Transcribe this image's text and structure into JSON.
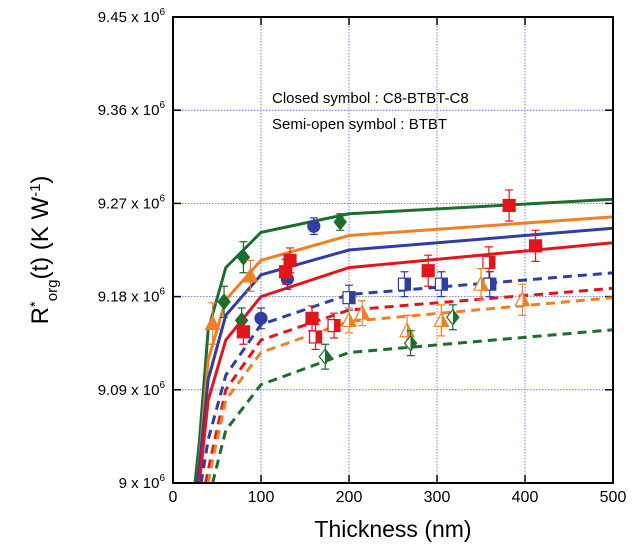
{
  "chart_data": {
    "type": "scatter",
    "x_label": "Thickness (nm)",
    "y_label": [
      {
        "text": "R"
      },
      {
        "text": "*",
        "shift": "super"
      },
      {
        "text": "org",
        "shift": "sub"
      },
      {
        "text": "(t) (K W"
      },
      {
        "text": "-1",
        "shift": "super"
      },
      {
        "text": ")"
      }
    ],
    "annotations": [
      "Closed symbol : C8-BTBT-C8",
      "Semi-open symbol : BTBT"
    ],
    "xlim": [
      0,
      500
    ],
    "xticks": [
      0,
      100,
      200,
      300,
      400,
      500
    ],
    "ylim": [
      9000000,
      9450000
    ],
    "yticks": [
      {
        "value": 9000000,
        "label": "9 x 10",
        "sup": "6"
      },
      {
        "value": 9090000,
        "label": "9.09 x 10",
        "sup": "6"
      },
      {
        "value": 9180000,
        "label": "9.18 x 10",
        "sup": "6"
      },
      {
        "value": 9270000,
        "label": "9.27 x 10",
        "sup": "6"
      },
      {
        "value": 9360000,
        "label": "9.36 x 10",
        "sup": "6"
      },
      {
        "value": 9450000,
        "label": "9.45 x 10",
        "sup": "6"
      }
    ],
    "grid": true,
    "series": [
      {
        "kind": "line",
        "style": "solid",
        "color": "#1b6e2c",
        "x": [
          25,
          30,
          40,
          60,
          100,
          200,
          500
        ],
        "values": [
          9000000,
          9040000,
          9148000,
          9208000,
          9242000,
          9260000,
          9274000
        ]
      },
      {
        "kind": "line",
        "style": "solid",
        "color": "#f08024",
        "x": [
          28,
          40,
          60,
          100,
          200,
          500
        ],
        "values": [
          9000000,
          9119000,
          9177000,
          9215000,
          9239000,
          9257000
        ]
      },
      {
        "kind": "line",
        "style": "solid",
        "color": "#2f3ea3",
        "x": [
          28,
          40,
          60,
          100,
          200,
          500
        ],
        "values": [
          9000000,
          9100000,
          9162000,
          9201000,
          9225000,
          9246000
        ]
      },
      {
        "kind": "line",
        "style": "solid",
        "color": "#e2151d",
        "x": [
          30,
          40,
          60,
          100,
          200,
          500
        ],
        "values": [
          9000000,
          9080000,
          9138000,
          9180000,
          9208000,
          9232000
        ]
      },
      {
        "kind": "line",
        "style": "dashed",
        "color": "#2f3ea3",
        "x": [
          32,
          40,
          60,
          100,
          200,
          500
        ],
        "values": [
          9000000,
          9042000,
          9104000,
          9153000,
          9182000,
          9203000
        ]
      },
      {
        "kind": "line",
        "style": "dashed",
        "color": "#e2151d",
        "x": [
          37,
          45,
          60,
          100,
          200,
          500
        ],
        "values": [
          9000000,
          9032000,
          9090000,
          9138000,
          9167000,
          9188000
        ]
      },
      {
        "kind": "line",
        "style": "dashed",
        "color": "#f08024",
        "x": [
          40,
          45,
          60,
          100,
          200,
          500
        ],
        "values": [
          9000000,
          9022000,
          9080000,
          9126000,
          9156000,
          9179000
        ]
      },
      {
        "kind": "line",
        "style": "dashed",
        "color": "#1b6e2c",
        "x": [
          45,
          60,
          100,
          200,
          500
        ],
        "values": [
          9000000,
          9051000,
          9095000,
          9126000,
          9148000
        ]
      },
      {
        "kind": "marker",
        "marker": "diamond",
        "fill": "closed",
        "color": "#1b6e2c",
        "x": [
          58,
          78,
          80,
          190
        ],
        "values": [
          9175000,
          9157000,
          9218000,
          9252000
        ],
        "errors": [
          15000,
          12000,
          15000,
          8000
        ]
      },
      {
        "kind": "marker",
        "marker": "circle",
        "fill": "closed",
        "color": "#2f3ea3",
        "x": [
          100,
          130,
          160
        ],
        "values": [
          9159000,
          9197000,
          9248000
        ],
        "errors": [
          10000,
          10000,
          8000
        ]
      },
      {
        "kind": "marker",
        "marker": "triangle",
        "fill": "closed",
        "color": "#f08024",
        "x": [
          45,
          88
        ],
        "values": [
          9154000,
          9200000
        ],
        "errors": [
          20000,
          15000
        ]
      },
      {
        "kind": "marker",
        "marker": "square",
        "fill": "closed",
        "color": "#e2151d",
        "x": [
          80,
          128,
          133,
          158,
          290,
          382,
          412
        ],
        "values": [
          9146000,
          9204000,
          9215000,
          9159000,
          9205000,
          9268000,
          9229000
        ],
        "errors": [
          12000,
          12000,
          12000,
          12000,
          15000,
          15000,
          15000
        ]
      },
      {
        "kind": "marker",
        "marker": "square",
        "fill": "semi-open",
        "color": "#e2151d",
        "x": [
          162,
          183,
          359
        ],
        "values": [
          9141000,
          9152000,
          9213000
        ],
        "errors": [
          12000,
          12000,
          15000
        ]
      },
      {
        "kind": "marker",
        "marker": "square",
        "fill": "semi-open",
        "color": "#2f3ea3",
        "x": [
          200,
          263,
          305,
          360
        ],
        "values": [
          9179000,
          9192000,
          9192000,
          9192000
        ],
        "errors": [
          12000,
          12000,
          12000,
          12000
        ]
      },
      {
        "kind": "marker",
        "marker": "triangle",
        "fill": "semi-open",
        "color": "#f08024",
        "x": [
          200,
          215,
          266,
          305,
          350,
          397
        ],
        "values": [
          9157000,
          9164000,
          9147000,
          9157000,
          9192000,
          9177000
        ],
        "errors": [
          12000,
          12000,
          15000,
          15000,
          15000,
          15000
        ]
      },
      {
        "kind": "marker",
        "marker": "diamond",
        "fill": "semi-open",
        "color": "#1b6e2c",
        "x": [
          173,
          270,
          318
        ],
        "values": [
          9122000,
          9135000,
          9160000
        ],
        "errors": [
          12000,
          12000,
          12000
        ]
      }
    ]
  }
}
